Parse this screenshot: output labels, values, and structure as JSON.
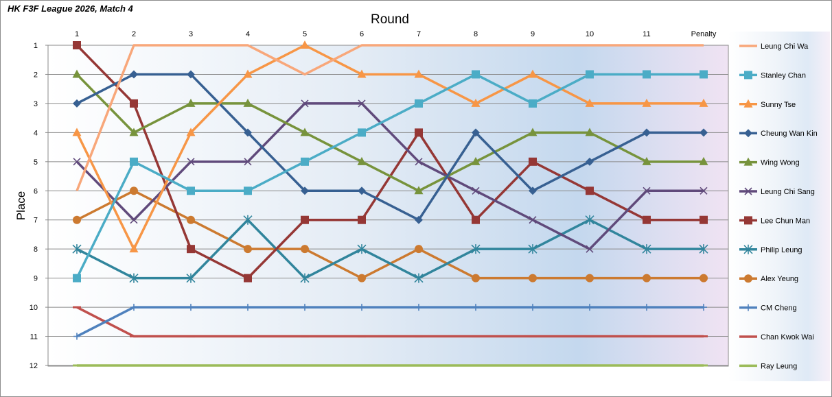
{
  "chart_data": {
    "type": "line",
    "title": "HK F3F League 2026, Match 4",
    "xlabel": "Round",
    "ylabel": "Place",
    "categories": [
      "1",
      "2",
      "3",
      "4",
      "5",
      "6",
      "7",
      "8",
      "9",
      "10",
      "11",
      "Penalty"
    ],
    "yticks": [
      "1",
      "2",
      "3",
      "4",
      "5",
      "6",
      "7",
      "8",
      "9",
      "10",
      "11",
      "12"
    ],
    "ylim": [
      1,
      12
    ],
    "y_inverted": true,
    "grid": "horizontal",
    "legend_position": "right",
    "series": [
      {
        "name": "Leung Chi Wa",
        "color": "#f8a77a",
        "marker": "none",
        "values": [
          6,
          1,
          1,
          1,
          2,
          1,
          1,
          1,
          1,
          1,
          1,
          1
        ]
      },
      {
        "name": "Stanley Chan",
        "color": "#4bacc6",
        "marker": "square",
        "values": [
          9,
          5,
          6,
          6,
          5,
          4,
          3,
          2,
          3,
          2,
          2,
          2
        ]
      },
      {
        "name": "Sunny Tse",
        "color": "#f79646",
        "marker": "triangle",
        "values": [
          4,
          8,
          4,
          2,
          1,
          2,
          2,
          3,
          2,
          3,
          3,
          3
        ]
      },
      {
        "name": "Cheung Wan Kin",
        "color": "#376092",
        "marker": "diamond",
        "values": [
          3,
          2,
          2,
          4,
          6,
          6,
          7,
          4,
          6,
          5,
          4,
          4
        ]
      },
      {
        "name": "Wing Wong",
        "color": "#77933c",
        "marker": "triangle",
        "values": [
          2,
          4,
          3,
          3,
          4,
          5,
          6,
          5,
          4,
          4,
          5,
          5
        ]
      },
      {
        "name": "Leung Chi Sang",
        "color": "#604a7b",
        "marker": "x",
        "values": [
          5,
          7,
          5,
          5,
          3,
          3,
          5,
          6,
          7,
          8,
          6,
          6
        ]
      },
      {
        "name": "Lee Chun Man",
        "color": "#953735",
        "marker": "square",
        "values": [
          1,
          3,
          8,
          9,
          7,
          7,
          4,
          7,
          5,
          6,
          7,
          7
        ]
      },
      {
        "name": "Philip Leung",
        "color": "#31859c",
        "marker": "star",
        "values": [
          8,
          9,
          9,
          7,
          9,
          8,
          9,
          8,
          8,
          7,
          8,
          8
        ]
      },
      {
        "name": "Alex Yeung",
        "color": "#cc7a30",
        "marker": "circle",
        "values": [
          7,
          6,
          7,
          8,
          8,
          9,
          8,
          9,
          9,
          9,
          9,
          9
        ]
      },
      {
        "name": "CM Cheng",
        "color": "#4f81bd",
        "marker": "plus",
        "values": [
          11,
          10,
          10,
          10,
          10,
          10,
          10,
          10,
          10,
          10,
          10,
          10
        ]
      },
      {
        "name": "Chan Kwok Wai",
        "color": "#c0504d",
        "marker": "dash",
        "values": [
          10,
          11,
          11,
          11,
          11,
          11,
          11,
          11,
          11,
          11,
          11,
          11
        ]
      },
      {
        "name": "Ray Leung",
        "color": "#9bbb59",
        "marker": "dash",
        "values": [
          12,
          12,
          12,
          12,
          12,
          12,
          12,
          12,
          12,
          12,
          12,
          12
        ]
      }
    ]
  }
}
